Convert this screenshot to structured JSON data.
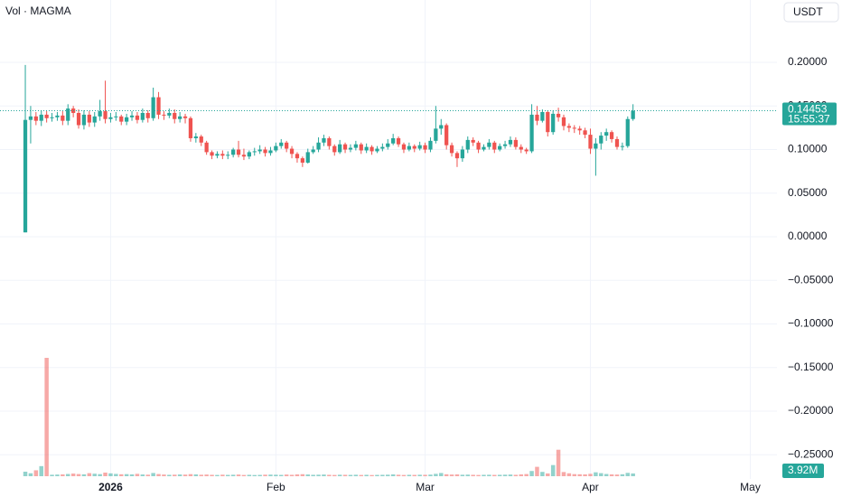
{
  "chart_data": {
    "type": "candlestick",
    "title": "Vol · MAGMA",
    "currency": "USDT",
    "countdown": "15:55:37",
    "up_color": "#26a69a",
    "down_color": "#ef5350",
    "grid": true,
    "xlim": [
      -4.75,
      141
    ],
    "xticks": [
      {
        "value": 16,
        "label": "2026"
      },
      {
        "value": 47,
        "label": "Feb"
      },
      {
        "value": 75,
        "label": "Mar"
      },
      {
        "value": 106,
        "label": "Apr"
      },
      {
        "value": 136,
        "label": "May"
      }
    ],
    "ylim": [
      -0.2777,
      0.2715
    ],
    "yticks": [
      {
        "value": 0.2,
        "label": "0.20000"
      },
      {
        "value": 0.15,
        "label": "0.15000"
      },
      {
        "value": 0.1,
        "label": "0.10000"
      },
      {
        "value": 0.05,
        "label": "0.05000"
      },
      {
        "value": 0,
        "label": "0.00000"
      },
      {
        "value": -0.05,
        "label": "−0.05000"
      },
      {
        "value": -0.1,
        "label": "−0.10000"
      },
      {
        "value": -0.15,
        "label": "−0.15000"
      },
      {
        "value": -0.2,
        "label": "−0.20000"
      },
      {
        "value": -0.25,
        "label": "−0.25000"
      }
    ],
    "open": [
      0.005,
      0.134,
      0.138,
      0.133,
      0.14,
      0.136,
      0.137,
      0.139,
      0.133,
      0.147,
      0.142,
      0.128,
      0.14,
      0.131,
      0.138,
      0.144,
      0.135,
      0.137,
      0.138,
      0.132,
      0.137,
      0.139,
      0.134,
      0.142,
      0.136,
      0.16,
      0.14,
      0.139,
      0.142,
      0.135,
      0.138,
      0.136,
      0.113,
      0.115,
      0.108,
      0.097,
      0.093,
      0.095,
      0.093,
      0.094,
      0.1,
      0.094,
      0.092,
      0.097,
      0.098,
      0.1,
      0.096,
      0.099,
      0.104,
      0.108,
      0.101,
      0.095,
      0.09,
      0.085,
      0.097,
      0.1,
      0.108,
      0.113,
      0.104,
      0.097,
      0.106,
      0.1,
      0.102,
      0.106,
      0.099,
      0.103,
      0.098,
      0.101,
      0.103,
      0.107,
      0.113,
      0.106,
      0.1,
      0.104,
      0.101,
      0.105,
      0.1,
      0.11,
      0.124,
      0.128,
      0.105,
      0.096,
      0.09,
      0.1,
      0.111,
      0.108,
      0.1,
      0.103,
      0.108,
      0.1,
      0.104,
      0.106,
      0.111,
      0.103,
      0.1,
      0.098,
      0.14,
      0.133,
      0.143,
      0.12,
      0.141,
      0.137,
      0.127,
      0.125,
      0.124,
      0.122,
      0.117,
      0.101,
      0.107,
      0.116,
      0.12,
      0.112,
      0.103,
      0.104,
      0.135
    ],
    "high": [
      0.197,
      0.15,
      0.143,
      0.145,
      0.144,
      0.142,
      0.143,
      0.144,
      0.152,
      0.15,
      0.146,
      0.145,
      0.144,
      0.143,
      0.157,
      0.179,
      0.142,
      0.143,
      0.14,
      0.141,
      0.144,
      0.143,
      0.147,
      0.145,
      0.171,
      0.166,
      0.144,
      0.147,
      0.146,
      0.143,
      0.141,
      0.138,
      0.119,
      0.117,
      0.11,
      0.099,
      0.098,
      0.099,
      0.098,
      0.102,
      0.11,
      0.101,
      0.099,
      0.102,
      0.105,
      0.103,
      0.103,
      0.108,
      0.112,
      0.11,
      0.104,
      0.097,
      0.092,
      0.101,
      0.104,
      0.114,
      0.117,
      0.115,
      0.106,
      0.111,
      0.108,
      0.106,
      0.11,
      0.108,
      0.107,
      0.105,
      0.104,
      0.107,
      0.112,
      0.118,
      0.115,
      0.108,
      0.108,
      0.106,
      0.109,
      0.108,
      0.114,
      0.15,
      0.135,
      0.13,
      0.108,
      0.098,
      0.104,
      0.115,
      0.114,
      0.11,
      0.106,
      0.112,
      0.11,
      0.107,
      0.11,
      0.115,
      0.114,
      0.106,
      0.102,
      0.152,
      0.15,
      0.146,
      0.145,
      0.145,
      0.148,
      0.14,
      0.13,
      0.128,
      0.127,
      0.125,
      0.124,
      0.113,
      0.12,
      0.124,
      0.122,
      0.115,
      0.108,
      0.138,
      0.152
    ],
    "low": [
      0.005,
      0.107,
      0.128,
      0.127,
      0.131,
      0.132,
      0.133,
      0.128,
      0.128,
      0.137,
      0.124,
      0.123,
      0.126,
      0.126,
      0.133,
      0.13,
      0.131,
      0.133,
      0.128,
      0.128,
      0.133,
      0.13,
      0.131,
      0.131,
      0.133,
      0.135,
      0.134,
      0.136,
      0.13,
      0.131,
      0.13,
      0.109,
      0.108,
      0.104,
      0.094,
      0.089,
      0.09,
      0.089,
      0.089,
      0.091,
      0.091,
      0.088,
      0.089,
      0.093,
      0.095,
      0.092,
      0.093,
      0.097,
      0.101,
      0.097,
      0.09,
      0.085,
      0.08,
      0.084,
      0.095,
      0.097,
      0.104,
      0.1,
      0.093,
      0.095,
      0.096,
      0.097,
      0.099,
      0.095,
      0.096,
      0.094,
      0.096,
      0.098,
      0.1,
      0.105,
      0.103,
      0.096,
      0.098,
      0.097,
      0.099,
      0.096,
      0.097,
      0.107,
      0.117,
      0.1,
      0.092,
      0.08,
      0.086,
      0.096,
      0.104,
      0.096,
      0.098,
      0.1,
      0.096,
      0.098,
      0.101,
      0.103,
      0.1,
      0.096,
      0.095,
      0.096,
      0.128,
      0.131,
      0.115,
      0.117,
      0.132,
      0.122,
      0.12,
      0.119,
      0.117,
      0.113,
      0.095,
      0.07,
      0.1,
      0.11,
      0.108,
      0.1,
      0.099,
      0.102,
      0.133
    ],
    "close": [
      0.134,
      0.138,
      0.133,
      0.14,
      0.136,
      0.137,
      0.139,
      0.133,
      0.147,
      0.142,
      0.128,
      0.14,
      0.131,
      0.138,
      0.144,
      0.135,
      0.137,
      0.138,
      0.132,
      0.137,
      0.139,
      0.134,
      0.142,
      0.136,
      0.16,
      0.14,
      0.139,
      0.142,
      0.135,
      0.138,
      0.136,
      0.113,
      0.115,
      0.108,
      0.097,
      0.093,
      0.095,
      0.093,
      0.094,
      0.1,
      0.094,
      0.092,
      0.097,
      0.098,
      0.1,
      0.096,
      0.099,
      0.104,
      0.108,
      0.101,
      0.095,
      0.09,
      0.085,
      0.097,
      0.1,
      0.108,
      0.113,
      0.104,
      0.097,
      0.106,
      0.1,
      0.102,
      0.106,
      0.099,
      0.103,
      0.098,
      0.101,
      0.103,
      0.107,
      0.113,
      0.106,
      0.1,
      0.104,
      0.101,
      0.105,
      0.1,
      0.11,
      0.124,
      0.128,
      0.105,
      0.096,
      0.09,
      0.1,
      0.111,
      0.108,
      0.1,
      0.103,
      0.108,
      0.1,
      0.104,
      0.106,
      0.111,
      0.103,
      0.1,
      0.098,
      0.14,
      0.133,
      0.143,
      0.12,
      0.141,
      0.137,
      0.127,
      0.125,
      0.124,
      0.122,
      0.117,
      0.101,
      0.107,
      0.116,
      0.12,
      0.112,
      0.103,
      0.104,
      0.135,
      0.14453
    ],
    "volume": [
      6.5,
      4.2,
      8.5,
      14.5,
      170,
      2.1,
      2.4,
      2.6,
      3.2,
      3.8,
      3.1,
      2.7,
      4.4,
      3.6,
      3.0,
      5.2,
      4.1,
      3.3,
      2.8,
      3.0,
      2.6,
      3.4,
      2.5,
      2.2,
      4.6,
      3.1,
      2.4,
      2.0,
      2.2,
      2.5,
      2.3,
      3.0,
      2.6,
      2.1,
      2.4,
      2.0,
      1.8,
      2.2,
      1.9,
      2.1,
      2.4,
      1.8,
      2.0,
      1.7,
      1.9,
      2.2,
      2.3,
      2.1,
      1.9,
      2.4,
      2.0,
      2.6,
      2.9,
      2.5,
      2.0,
      2.2,
      2.4,
      2.0,
      1.8,
      2.1,
      2.0,
      1.9,
      2.1,
      1.8,
      2.0,
      1.7,
      1.9,
      2.0,
      2.2,
      2.6,
      2.1,
      1.8,
      2.0,
      1.9,
      2.1,
      2.0,
      2.3,
      3.4,
      4.6,
      2.8,
      2.4,
      2.6,
      2.1,
      2.3,
      2.0,
      1.8,
      2.0,
      2.1,
      1.9,
      2.0,
      2.2,
      2.4,
      2.0,
      2.6,
      3.1,
      7.5,
      13.5,
      6.2,
      4.0,
      16.0,
      38.0,
      6.0,
      4.2,
      3.0,
      2.8,
      2.6,
      3.4,
      5.6,
      4.4,
      3.2,
      2.6,
      2.4,
      2.8,
      4.8,
      3.92
    ],
    "volume_last_label": "3.92M"
  }
}
